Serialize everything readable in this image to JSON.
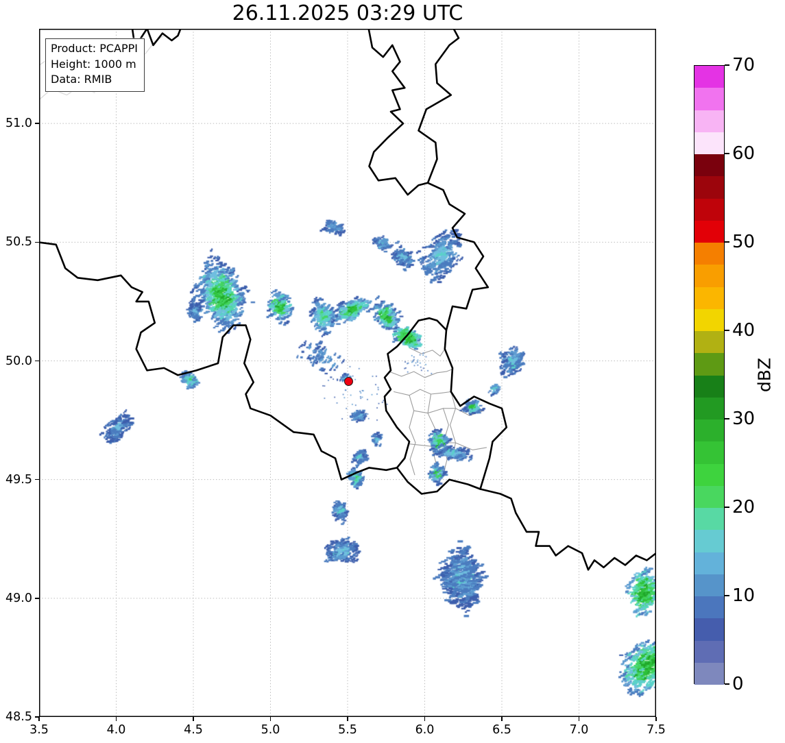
{
  "title": "26.11.2025 03:29 UTC",
  "info_box": {
    "lines": [
      "Product: PCAPPI",
      "Height: 1000 m",
      "Data: RMIB"
    ]
  },
  "axes": {
    "x_ticks": [
      {
        "value": 3.5,
        "label": "3.5"
      },
      {
        "value": 4.0,
        "label": "4.0"
      },
      {
        "value": 4.5,
        "label": "4.5"
      },
      {
        "value": 5.0,
        "label": "5.0"
      },
      {
        "value": 5.5,
        "label": "5.5"
      },
      {
        "value": 6.0,
        "label": "6.0"
      },
      {
        "value": 6.5,
        "label": "6.5"
      },
      {
        "value": 7.0,
        "label": "7.0"
      },
      {
        "value": 7.5,
        "label": "7.5"
      }
    ],
    "y_ticks": [
      {
        "value": 51.0,
        "label": "51.0"
      },
      {
        "value": 50.5,
        "label": "50.5"
      },
      {
        "value": 50.0,
        "label": "50.0"
      },
      {
        "value": 49.5,
        "label": "49.5"
      },
      {
        "value": 49.0,
        "label": "49.0"
      },
      {
        "value": 48.5,
        "label": "48.5"
      }
    ]
  },
  "map": {
    "extent": {
      "lon_min": 3.5,
      "lon_max": 7.5,
      "lat_min": 48.5,
      "lat_max": 51.399
    }
  },
  "colorbar": {
    "label": "dBZ",
    "min": 0,
    "max": 70,
    "band_step": 2.5,
    "tick_values": [
      0,
      10,
      20,
      30,
      40,
      50,
      60,
      70
    ],
    "tick_labels": [
      "0",
      "10",
      "20",
      "30",
      "40",
      "50",
      "60",
      "70"
    ],
    "band_colors_bottom_to_top": [
      "#7e88bd",
      "#5f6db4",
      "#455dad",
      "#4b76bd",
      "#5694ca",
      "#63b2da",
      "#66cbd2",
      "#58d9a4",
      "#49d75f",
      "#3ed33e",
      "#35c335",
      "#2cb02c",
      "#229a22",
      "#188018",
      "#5e9a14",
      "#b1b113",
      "#f2d500",
      "#fbb600",
      "#f99e00",
      "#f57f00",
      "#e20007",
      "#bf030a",
      "#9c050c",
      "#7a010d",
      "#fce4fb",
      "#f8b4f4",
      "#f173ef",
      "#e433e4"
    ]
  },
  "radar_site": {
    "lon": 5.505,
    "lat": 49.914,
    "marker_color": "#ee0011"
  },
  "palette": {
    "blue_dark": "#3d5fad",
    "blue": "#4b7cbf",
    "blue_mid": "#5c9bd0",
    "blue_light": "#70bedf",
    "cyan": "#5bd2c9",
    "seafoam": "#52d99e",
    "green_light": "#43d55f",
    "green": "#2ec23a",
    "green_deep": "#21a82b"
  },
  "geo": {
    "country_borders": [
      [
        [
          4.1,
          51.42
        ],
        [
          4.12,
          51.33
        ],
        [
          4.16,
          51.36
        ],
        [
          4.2,
          51.4
        ],
        [
          4.24,
          51.33
        ],
        [
          4.3,
          51.38
        ],
        [
          4.36,
          51.35
        ],
        [
          4.4,
          51.37
        ],
        [
          4.43,
          51.42
        ]
      ],
      [
        [
          5.63,
          51.42
        ],
        [
          5.66,
          51.32
        ],
        [
          5.73,
          51.28
        ],
        [
          5.79,
          51.33
        ],
        [
          5.84,
          51.26
        ],
        [
          5.79,
          51.22
        ],
        [
          5.87,
          51.15
        ],
        [
          5.79,
          51.14
        ],
        [
          5.84,
          51.06
        ],
        [
          5.78,
          51.05
        ],
        [
          5.86,
          51.0
        ],
        [
          5.76,
          50.94
        ],
        [
          5.67,
          50.88
        ],
        [
          5.64,
          50.82
        ],
        [
          5.7,
          50.76
        ],
        [
          5.81,
          50.77
        ],
        [
          5.89,
          50.7
        ],
        [
          5.96,
          50.74
        ],
        [
          6.02,
          50.75
        ],
        [
          6.12,
          50.72
        ],
        [
          6.16,
          50.66
        ],
        [
          6.26,
          50.62
        ],
        [
          6.18,
          50.56
        ],
        [
          6.21,
          50.52
        ],
        [
          6.32,
          50.5
        ],
        [
          6.38,
          50.44
        ],
        [
          6.33,
          50.39
        ],
        [
          6.41,
          50.31
        ],
        [
          6.31,
          50.3
        ],
        [
          6.27,
          50.22
        ],
        [
          6.18,
          50.23
        ],
        [
          6.14,
          50.13
        ]
      ],
      [
        [
          6.02,
          50.75
        ],
        [
          6.08,
          50.85
        ],
        [
          6.07,
          50.92
        ],
        [
          5.96,
          50.97
        ],
        [
          6.01,
          51.06
        ],
        [
          6.17,
          51.12
        ],
        [
          6.08,
          51.17
        ],
        [
          6.07,
          51.25
        ],
        [
          6.16,
          51.33
        ],
        [
          6.22,
          51.36
        ],
        [
          6.17,
          51.42
        ]
      ],
      [
        [
          3.49,
          50.5
        ],
        [
          3.61,
          50.49
        ],
        [
          3.64,
          50.44
        ],
        [
          3.67,
          50.39
        ],
        [
          3.75,
          50.35
        ],
        [
          3.88,
          50.34
        ],
        [
          4.03,
          50.36
        ],
        [
          4.1,
          50.31
        ],
        [
          4.17,
          50.29
        ],
        [
          4.13,
          50.25
        ],
        [
          4.21,
          50.25
        ],
        [
          4.25,
          50.16
        ],
        [
          4.16,
          50.12
        ],
        [
          4.13,
          50.05
        ],
        [
          4.2,
          49.96
        ],
        [
          4.31,
          49.97
        ],
        [
          4.4,
          49.94
        ],
        [
          4.52,
          49.96
        ],
        [
          4.66,
          49.99
        ],
        [
          4.69,
          50.1
        ],
        [
          4.76,
          50.15
        ],
        [
          4.84,
          50.15
        ],
        [
          4.87,
          50.09
        ],
        [
          4.83,
          49.99
        ],
        [
          4.89,
          49.91
        ],
        [
          4.84,
          49.86
        ],
        [
          4.87,
          49.8
        ],
        [
          5.0,
          49.77
        ],
        [
          5.15,
          49.7
        ],
        [
          5.28,
          49.69
        ],
        [
          5.33,
          49.62
        ],
        [
          5.42,
          49.59
        ],
        [
          5.46,
          49.5
        ],
        [
          5.56,
          49.53
        ],
        [
          5.64,
          49.55
        ],
        [
          5.75,
          49.54
        ],
        [
          5.82,
          49.55
        ]
      ],
      [
        [
          5.82,
          49.55
        ],
        [
          5.87,
          49.59
        ],
        [
          5.9,
          49.66
        ],
        [
          5.82,
          49.72
        ],
        [
          5.75,
          49.79
        ],
        [
          5.74,
          49.85
        ],
        [
          5.78,
          49.88
        ],
        [
          5.74,
          49.93
        ],
        [
          5.78,
          49.96
        ],
        [
          5.76,
          50.03
        ],
        [
          5.82,
          50.06
        ],
        [
          5.89,
          50.11
        ],
        [
          5.96,
          50.17
        ],
        [
          6.03,
          50.18
        ],
        [
          6.08,
          50.17
        ],
        [
          6.14,
          50.13
        ],
        [
          6.13,
          50.05
        ],
        [
          6.18,
          49.97
        ],
        [
          6.17,
          49.87
        ],
        [
          6.23,
          49.81
        ],
        [
          6.32,
          49.85
        ],
        [
          6.42,
          49.82
        ],
        [
          6.5,
          49.8
        ],
        [
          6.53,
          49.72
        ],
        [
          6.44,
          49.66
        ],
        [
          6.42,
          49.59
        ],
        [
          6.36,
          49.46
        ],
        [
          6.28,
          49.48
        ],
        [
          6.16,
          49.5
        ],
        [
          6.08,
          49.45
        ],
        [
          5.98,
          49.44
        ],
        [
          5.89,
          49.49
        ],
        [
          5.82,
          49.55
        ]
      ],
      [
        [
          6.36,
          49.46
        ],
        [
          6.49,
          49.44
        ],
        [
          6.56,
          49.42
        ],
        [
          6.59,
          49.36
        ],
        [
          6.66,
          49.28
        ],
        [
          6.74,
          49.28
        ],
        [
          6.72,
          49.22
        ],
        [
          6.81,
          49.22
        ],
        [
          6.85,
          49.18
        ],
        [
          6.93,
          49.22
        ],
        [
          7.02,
          49.19
        ],
        [
          7.06,
          49.12
        ],
        [
          7.1,
          49.16
        ],
        [
          7.16,
          49.13
        ],
        [
          7.23,
          49.17
        ],
        [
          7.3,
          49.14
        ],
        [
          7.37,
          49.18
        ],
        [
          7.44,
          49.16
        ],
        [
          7.5,
          49.19
        ]
      ]
    ],
    "luxembourg_cantons": [
      [
        [
          5.8,
          49.87
        ],
        [
          5.9,
          49.855
        ],
        [
          5.97,
          49.88
        ],
        [
          6.04,
          49.86
        ],
        [
          6.11,
          49.865
        ],
        [
          6.17,
          49.87
        ]
      ],
      [
        [
          5.77,
          49.955
        ],
        [
          5.85,
          49.935
        ],
        [
          5.93,
          49.955
        ],
        [
          6.0,
          49.93
        ],
        [
          6.08,
          49.95
        ],
        [
          6.14,
          49.955
        ],
        [
          6.18,
          49.965
        ]
      ],
      [
        [
          5.9,
          50.055
        ],
        [
          5.98,
          50.03
        ],
        [
          6.05,
          50.045
        ],
        [
          6.1,
          50.02
        ],
        [
          6.13,
          50.05
        ]
      ],
      [
        [
          5.9,
          49.855
        ],
        [
          5.93,
          49.79
        ],
        [
          5.9,
          49.72
        ],
        [
          5.94,
          49.655
        ],
        [
          5.905,
          49.585
        ],
        [
          5.935,
          49.52
        ]
      ],
      [
        [
          6.04,
          49.86
        ],
        [
          6.02,
          49.78
        ],
        [
          6.07,
          49.71
        ],
        [
          6.045,
          49.64
        ],
        [
          6.075,
          49.565
        ]
      ],
      [
        [
          6.17,
          49.87
        ],
        [
          6.2,
          49.8
        ],
        [
          6.165,
          49.73
        ],
        [
          6.2,
          49.655
        ],
        [
          6.175,
          49.585
        ]
      ],
      [
        [
          5.93,
          49.79
        ],
        [
          6.02,
          49.78
        ],
        [
          6.12,
          49.8
        ],
        [
          6.2,
          49.8
        ],
        [
          6.29,
          49.77
        ],
        [
          6.38,
          49.79
        ]
      ],
      [
        [
          5.9,
          49.65
        ],
        [
          6.045,
          49.64
        ],
        [
          6.12,
          49.655
        ],
        [
          6.2,
          49.655
        ],
        [
          6.31,
          49.625
        ],
        [
          6.4,
          49.635
        ]
      ],
      [
        [
          6.12,
          49.8
        ],
        [
          6.155,
          49.73
        ],
        [
          6.12,
          49.655
        ],
        [
          6.145,
          49.585
        ],
        [
          6.12,
          49.52
        ]
      ]
    ],
    "coastlines_faint": [
      [
        [
          3.5,
          51.245
        ],
        [
          3.6,
          51.29
        ],
        [
          3.71,
          51.255
        ],
        [
          3.83,
          51.3
        ],
        [
          3.96,
          51.255
        ],
        [
          4.07,
          51.315
        ],
        [
          4.16,
          51.27
        ],
        [
          4.25,
          51.345
        ],
        [
          4.31,
          51.37
        ]
      ],
      [
        [
          3.5,
          51.1
        ],
        [
          3.58,
          51.145
        ],
        [
          3.68,
          51.12
        ],
        [
          3.76,
          51.155
        ],
        [
          3.86,
          51.13
        ]
      ]
    ]
  },
  "echo_clusters": [
    {
      "lon": 4.67,
      "lat": 50.28,
      "w": 0.36,
      "h": 0.26,
      "ang": -38,
      "n": 560,
      "i": 2
    },
    {
      "lon": 4.5,
      "lat": 50.21,
      "w": 0.1,
      "h": 0.08,
      "ang": -30,
      "n": 70,
      "i": 1
    },
    {
      "lon": 5.05,
      "lat": 50.23,
      "w": 0.17,
      "h": 0.13,
      "ang": -25,
      "n": 140,
      "i": 2
    },
    {
      "lon": 5.4,
      "lat": 50.565,
      "w": 0.15,
      "h": 0.05,
      "ang": -10,
      "n": 55,
      "i": 0
    },
    {
      "lon": 5.33,
      "lat": 50.19,
      "w": 0.17,
      "h": 0.14,
      "ang": -30,
      "n": 150,
      "i": 1.5
    },
    {
      "lon": 5.52,
      "lat": 50.22,
      "w": 0.1,
      "h": 0.26,
      "ang": -75,
      "n": 170,
      "i": 2
    },
    {
      "lon": 5.71,
      "lat": 50.5,
      "w": 0.13,
      "h": 0.06,
      "ang": -20,
      "n": 55,
      "i": 1
    },
    {
      "lon": 5.85,
      "lat": 50.44,
      "w": 0.16,
      "h": 0.09,
      "ang": -30,
      "n": 95,
      "i": 1
    },
    {
      "lon": 6.1,
      "lat": 50.45,
      "w": 0.2,
      "h": 0.3,
      "ang": -60,
      "n": 240,
      "i": 1
    },
    {
      "lon": 5.74,
      "lat": 50.19,
      "w": 0.19,
      "h": 0.11,
      "ang": -25,
      "n": 170,
      "i": 2
    },
    {
      "lon": 5.88,
      "lat": 50.1,
      "w": 0.18,
      "h": 0.08,
      "ang": -15,
      "n": 190,
      "i": 2,
      "core": 1.5
    },
    {
      "lon": 6.56,
      "lat": 50.0,
      "w": 0.13,
      "h": 0.18,
      "ang": -80,
      "n": 130,
      "i": 1
    },
    {
      "lon": 4.47,
      "lat": 49.92,
      "w": 0.12,
      "h": 0.07,
      "ang": -20,
      "n": 80,
      "i": 1.5
    },
    {
      "lon": 4.0,
      "lat": 49.72,
      "w": 0.11,
      "h": 0.21,
      "ang": -60,
      "n": 130,
      "i": 1,
      "core": 0.7
    },
    {
      "lon": 5.56,
      "lat": 49.77,
      "w": 0.09,
      "h": 0.05,
      "ang": -20,
      "n": 45,
      "i": 1
    },
    {
      "lon": 5.68,
      "lat": 49.67,
      "w": 0.07,
      "h": 0.05,
      "ang": -20,
      "n": 35,
      "i": 1
    },
    {
      "lon": 5.57,
      "lat": 49.6,
      "w": 0.06,
      "h": 0.09,
      "ang": -80,
      "n": 40,
      "i": 1
    },
    {
      "lon": 5.54,
      "lat": 49.51,
      "w": 0.1,
      "h": 0.09,
      "ang": -45,
      "n": 75,
      "i": 1.5
    },
    {
      "lon": 6.3,
      "lat": 49.81,
      "w": 0.14,
      "h": 0.06,
      "ang": -15,
      "n": 65,
      "i": 2,
      "core": 0.8
    },
    {
      "lon": 6.08,
      "lat": 49.66,
      "w": 0.12,
      "h": 0.1,
      "ang": -40,
      "n": 115,
      "i": 2
    },
    {
      "lon": 6.17,
      "lat": 49.615,
      "w": 0.27,
      "h": 0.06,
      "ang": -8,
      "n": 115,
      "i": 1
    },
    {
      "lon": 6.07,
      "lat": 49.53,
      "w": 0.1,
      "h": 0.09,
      "ang": -30,
      "n": 85,
      "i": 2,
      "core": 0.8
    },
    {
      "lon": 5.44,
      "lat": 49.37,
      "w": 0.11,
      "h": 0.09,
      "ang": -30,
      "n": 80,
      "i": 1
    },
    {
      "lon": 5.45,
      "lat": 49.2,
      "w": 0.11,
      "h": 0.23,
      "ang": -85,
      "n": 150,
      "i": 1
    },
    {
      "lon": 6.22,
      "lat": 49.09,
      "w": 0.3,
      "h": 0.27,
      "ang": -40,
      "n": 330,
      "i": 0.7,
      "dash": 1.5
    },
    {
      "lon": 7.41,
      "lat": 49.03,
      "w": 0.19,
      "h": 0.21,
      "ang": -50,
      "n": 230,
      "i": 2,
      "core": 1.3
    },
    {
      "lon": 7.43,
      "lat": 48.72,
      "w": 0.22,
      "h": 0.36,
      "ang": -70,
      "n": 400,
      "i": 2,
      "core": 1.3
    },
    {
      "lon": 5.32,
      "lat": 50.02,
      "w": 0.34,
      "h": 0.13,
      "ang": -20,
      "n": 80,
      "i": 0.3,
      "dash": 0.7
    },
    {
      "lon": 5.48,
      "lat": 49.93,
      "w": 0.06,
      "h": 0.04,
      "ang": 0,
      "n": 16,
      "i": 1
    },
    {
      "lon": 6.44,
      "lat": 49.885,
      "w": 0.06,
      "h": 0.05,
      "ang": -20,
      "n": 22,
      "i": 1
    },
    {
      "lon": 5.95,
      "lat": 50.0,
      "w": 0.22,
      "h": 0.13,
      "ang": 0,
      "n": 28,
      "i": 0,
      "tiny": true
    },
    {
      "lon": 5.55,
      "lat": 49.86,
      "w": 0.55,
      "h": 0.28,
      "ang": 0,
      "n": 45,
      "i": 0,
      "tiny": true
    }
  ]
}
